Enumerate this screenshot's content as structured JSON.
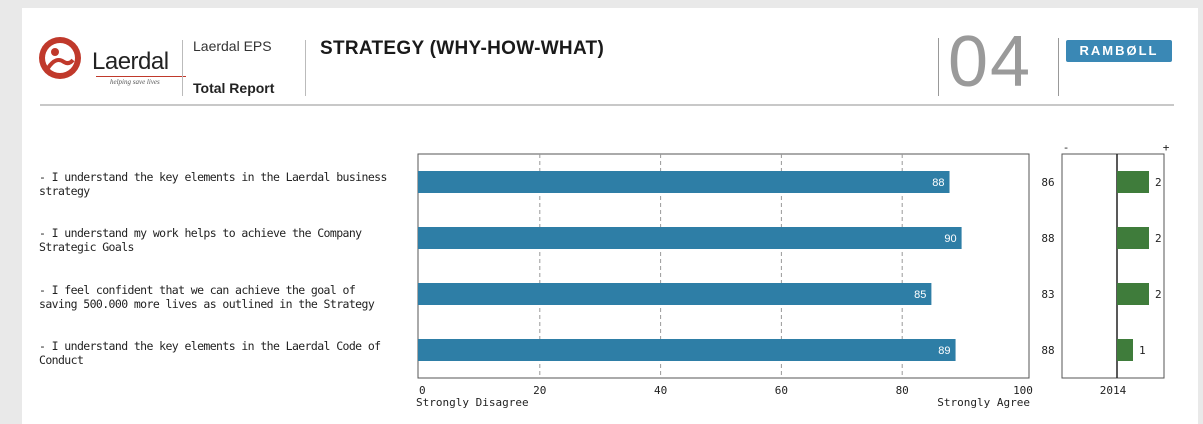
{
  "header": {
    "logo_text": "Laerdal",
    "logo_tagline": "helping save lives",
    "report_name": "Laerdal EPS",
    "report_type": "Total Report",
    "section_title": "STRATEGY (WHY-HOW-WHAT)",
    "page_number": "04",
    "partner_logo": "RAMBØLL"
  },
  "colors": {
    "bar": "#2e7ea6",
    "change_bar": "#3f7c3b",
    "partner": "#3a88b5"
  },
  "chart_data": [
    {
      "type": "bar",
      "orientation": "horizontal",
      "categories": [
        "- I understand the key elements in the Laerdal business strategy",
        "- I understand my work helps to achieve the Company Strategic Goals",
        "- I feel confident that we can achieve the goal of saving 500.000 more lives as outlined in the Strategy",
        "- I understand the key elements in the Laerdal Code of Conduct"
      ],
      "values": [
        88,
        90,
        85,
        89
      ],
      "xlim": [
        0,
        100
      ],
      "xticks": [
        "0",
        "20",
        "40",
        "60",
        "80",
        "100"
      ],
      "xlabel_left": "Strongly Disagree",
      "xlabel_right": "Strongly Agree",
      "grid": "vertical dashed"
    },
    {
      "type": "bar",
      "orientation": "horizontal",
      "title_left": "-",
      "title_right": "+",
      "xlabel": "2014",
      "previous_values": [
        "86",
        "88",
        "83",
        "88"
      ],
      "changes": [
        2,
        2,
        2,
        1
      ],
      "change_labels": [
        "2",
        "2",
        "2",
        "1"
      ]
    }
  ]
}
